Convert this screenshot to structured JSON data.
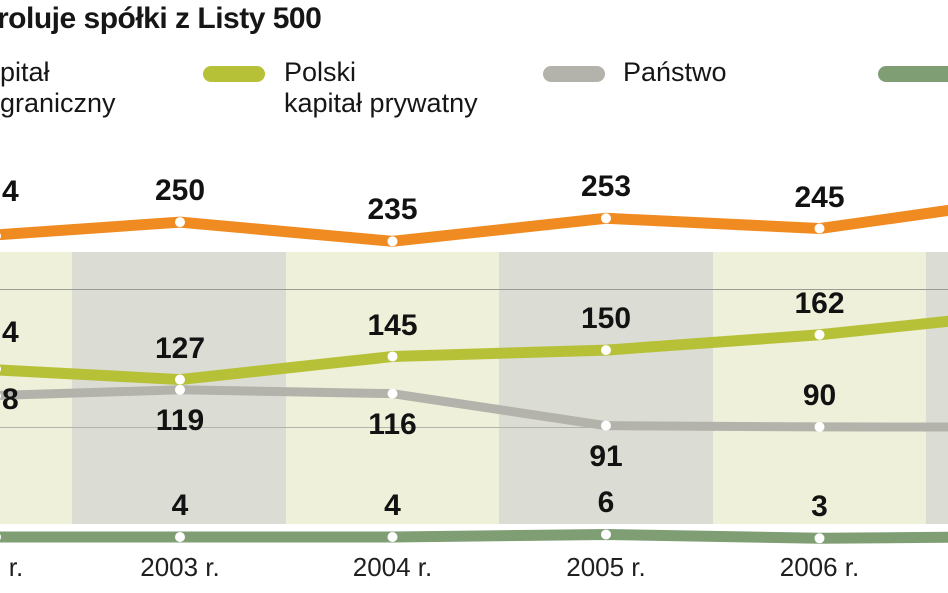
{
  "title": "roluje spółki z Listy 500",
  "legend": {
    "items": [
      {
        "label_lines": [
          "pitał",
          "graniczny"
        ],
        "color": "#ef8b20",
        "swatch_visible": false
      },
      {
        "label_lines": [
          "Polski",
          "kapitał prywatny"
        ],
        "color": "#b7c138",
        "swatch_visible": true
      },
      {
        "label_lines": [
          "Państwo"
        ],
        "color": "#b3b3ab",
        "swatch_visible": true
      },
      {
        "label_lines": [],
        "color": "#7f9e74",
        "swatch_visible": true
      }
    ]
  },
  "chart_data": {
    "type": "line",
    "title": "roluje spółki z Listy 500",
    "categories": [
      "2003 r.",
      "2004 r.",
      "2005 r.",
      "2006 r."
    ],
    "x_axis_partial_left_label": "r.",
    "series": [
      {
        "name_visible": "pitał graniczny",
        "color": "#ef8b20",
        "values": [
          250,
          235,
          253,
          245
        ],
        "partial_left_label": "4"
      },
      {
        "name_visible": "Polski kapitał prywatny",
        "color": "#b7c138",
        "values": [
          127,
          145,
          150,
          162
        ],
        "partial_left_label": "4"
      },
      {
        "name_visible": "Państwo",
        "color": "#b3b3ab",
        "values": [
          119,
          116,
          91,
          90
        ],
        "partial_left_label": "8"
      },
      {
        "name_visible": "",
        "color": "#7f9e74",
        "values": [
          4,
          4,
          6,
          3
        ],
        "partial_left_label": ""
      }
    ],
    "value_label_placement": [
      [
        "above",
        "above",
        "above",
        "above"
      ],
      [
        "above",
        "above",
        "above",
        "above"
      ],
      [
        "below",
        "below",
        "below",
        "above"
      ],
      [
        "above",
        "above",
        "above",
        "above"
      ]
    ],
    "ylim_implied": [
      0,
      260
    ],
    "grid": "horizontal",
    "legend_position": "top"
  }
}
